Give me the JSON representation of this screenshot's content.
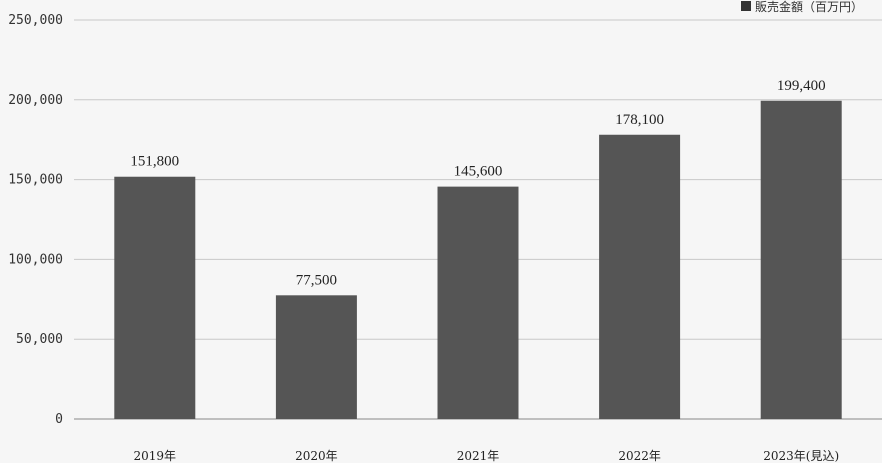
{
  "chart_data": {
    "type": "bar",
    "categories": [
      "2019年",
      "2020年",
      "2021年",
      "2022年",
      "2023年(見込)"
    ],
    "series": [
      {
        "name": "販売金額（百万円）",
        "values": [
          151800,
          77500,
          145600,
          178100,
          199400
        ]
      }
    ],
    "data_labels": [
      "151,800",
      "77,500",
      "145,600",
      "178,100",
      "199,400"
    ],
    "y_ticks": [
      "0",
      "50,000",
      "100,000",
      "150,000",
      "200,000",
      "250,000"
    ],
    "y_tick_values": [
      0,
      50000,
      100000,
      150000,
      200000,
      250000
    ],
    "ylim": [
      0,
      250000
    ],
    "grid": true,
    "legend_position": "top-right",
    "colors": {
      "bar": "#555555",
      "grid": "#c8c8c8",
      "axis": "#888888",
      "background": "#f6f6f6",
      "legend_marker": "#333333"
    }
  }
}
